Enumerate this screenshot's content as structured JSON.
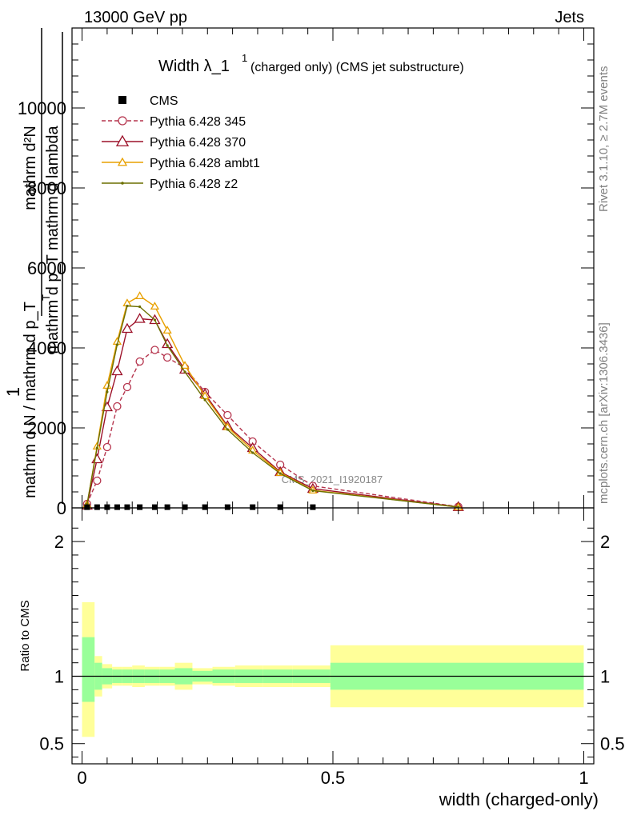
{
  "header": {
    "left": "13000 GeV pp",
    "right": "Jets"
  },
  "side_labels": {
    "rivet": "Rivet 3.1.10, ≥ 2.7M events",
    "mcplots": "mcplots.cern.ch [arXiv:1306.3436]"
  },
  "chart_data": [
    {
      "type": "line",
      "panel": "main",
      "title_main": "Width λ_1",
      "title_sup": "1",
      "title_rest": "(charged only) (CMS jet substructure)",
      "ylabel_top_frac": "mathrm d²N",
      "ylabel_bottom_frac": "mathrm d p_T mathrm d lambda",
      "ylabel_one": "1",
      "ylabel_bottom": "mathrm d N / mathrm d p_T",
      "ylabel_sub": "T",
      "watermark": "CMS_2021_I1920187",
      "xlim": [
        -0.02,
        1.02
      ],
      "ylim": [
        0,
        12000
      ],
      "yticks": [
        {
          "value": 0,
          "label": "0"
        },
        {
          "value": 2000,
          "label": "2000"
        },
        {
          "value": 4000,
          "label": "4000"
        },
        {
          "value": 6000,
          "label": "6000"
        },
        {
          "value": 8000,
          "label": "8000"
        },
        {
          "value": 10000,
          "label": "10000"
        }
      ],
      "legend": [
        {
          "label": "CMS",
          "color": "#000000",
          "marker": "square",
          "dash": ""
        },
        {
          "label": "Pythia 6.428 345",
          "color": "#b5344d",
          "marker": "circle",
          "dash": "5,3"
        },
        {
          "label": "Pythia 6.428 370",
          "color": "#9c1028",
          "marker": "triangle",
          "dash": ""
        },
        {
          "label": "Pythia 6.428 ambt1",
          "color": "#e8a000",
          "marker": "triangle",
          "dash": ""
        },
        {
          "label": "Pythia 6.428 z2",
          "color": "#6b6f00",
          "marker": "dot",
          "dash": ""
        }
      ],
      "cms": {
        "x": [
          0.01,
          0.03,
          0.05,
          0.07,
          0.09,
          0.115,
          0.145,
          0.17,
          0.205,
          0.245,
          0.29,
          0.34,
          0.395,
          0.46
        ],
        "y": [
          18,
          18,
          18,
          18,
          18,
          18,
          18,
          18,
          18,
          18,
          18,
          18,
          18,
          18
        ]
      },
      "series": [
        {
          "name": "Pythia 6.428 345",
          "x": [
            0.01,
            0.03,
            0.05,
            0.07,
            0.09,
            0.115,
            0.145,
            0.17,
            0.205,
            0.245,
            0.29,
            0.34,
            0.395,
            0.46,
            0.75
          ],
          "y": [
            100,
            680,
            1520,
            2540,
            3020,
            3660,
            3950,
            3760,
            3500,
            2900,
            2320,
            1660,
            1080,
            550,
            30
          ]
        },
        {
          "name": "Pythia 6.428 370",
          "x": [
            0.01,
            0.03,
            0.05,
            0.07,
            0.09,
            0.115,
            0.145,
            0.17,
            0.205,
            0.245,
            0.29,
            0.34,
            0.395,
            0.46,
            0.75
          ],
          "y": [
            60,
            1220,
            2520,
            3420,
            4480,
            4730,
            4700,
            4100,
            3460,
            2850,
            2050,
            1500,
            900,
            480,
            25
          ]
        },
        {
          "name": "Pythia 6.428 ambt1",
          "x": [
            0.01,
            0.03,
            0.05,
            0.07,
            0.09,
            0.115,
            0.145,
            0.17,
            0.205,
            0.245,
            0.29,
            0.34,
            0.395,
            0.46,
            0.75
          ],
          "y": [
            80,
            1540,
            3060,
            4160,
            5120,
            5300,
            5040,
            4440,
            3560,
            2800,
            2020,
            1440,
            880,
            440,
            20
          ]
        },
        {
          "name": "Pythia 6.428 z2",
          "x": [
            0.01,
            0.03,
            0.05,
            0.07,
            0.09,
            0.115,
            0.145,
            0.17,
            0.205,
            0.245,
            0.29,
            0.34,
            0.395,
            0.46,
            0.75
          ],
          "y": [
            90,
            1500,
            2900,
            4080,
            5050,
            5030,
            4700,
            4060,
            3400,
            2700,
            1960,
            1380,
            860,
            430,
            20
          ]
        }
      ]
    },
    {
      "type": "area",
      "panel": "ratio",
      "ylabel": "Ratio to CMS",
      "xlabel": "width (charged-only)",
      "xlim": [
        -0.02,
        1.02
      ],
      "ylim": [
        0.35,
        2.25
      ],
      "xticks": [
        {
          "value": 0,
          "label": "0"
        },
        {
          "value": 0.5,
          "label": "0.5"
        },
        {
          "value": 1,
          "label": "1"
        }
      ],
      "yticks": [
        {
          "value": 0.5,
          "label": "0.5"
        },
        {
          "value": 1,
          "label": "1"
        },
        {
          "value": 2,
          "label": "2"
        }
      ],
      "band_colors": {
        "outer": "#ffff99",
        "inner": "#99ff99"
      },
      "bins": [
        {
          "x0": 0.0,
          "x1": 0.025,
          "outer": [
            0.55,
            1.55
          ],
          "inner": [
            0.81,
            1.29
          ]
        },
        {
          "x0": 0.025,
          "x1": 0.04,
          "outer": [
            0.85,
            1.15
          ],
          "inner": [
            0.9,
            1.1
          ]
        },
        {
          "x0": 0.04,
          "x1": 0.06,
          "outer": [
            0.91,
            1.09
          ],
          "inner": [
            0.94,
            1.06
          ]
        },
        {
          "x0": 0.06,
          "x1": 0.08,
          "outer": [
            0.93,
            1.07
          ],
          "inner": [
            0.95,
            1.05
          ]
        },
        {
          "x0": 0.08,
          "x1": 0.1,
          "outer": [
            0.93,
            1.07
          ],
          "inner": [
            0.95,
            1.05
          ]
        },
        {
          "x0": 0.1,
          "x1": 0.125,
          "outer": [
            0.92,
            1.08
          ],
          "inner": [
            0.95,
            1.05
          ]
        },
        {
          "x0": 0.125,
          "x1": 0.155,
          "outer": [
            0.93,
            1.07
          ],
          "inner": [
            0.95,
            1.05
          ]
        },
        {
          "x0": 0.155,
          "x1": 0.185,
          "outer": [
            0.93,
            1.07
          ],
          "inner": [
            0.95,
            1.05
          ]
        },
        {
          "x0": 0.185,
          "x1": 0.22,
          "outer": [
            0.9,
            1.1
          ],
          "inner": [
            0.94,
            1.06
          ]
        },
        {
          "x0": 0.22,
          "x1": 0.26,
          "outer": [
            0.94,
            1.06
          ],
          "inner": [
            0.96,
            1.04
          ]
        },
        {
          "x0": 0.26,
          "x1": 0.305,
          "outer": [
            0.93,
            1.07
          ],
          "inner": [
            0.95,
            1.05
          ]
        },
        {
          "x0": 0.305,
          "x1": 0.36,
          "outer": [
            0.92,
            1.08
          ],
          "inner": [
            0.95,
            1.05
          ]
        },
        {
          "x0": 0.36,
          "x1": 0.42,
          "outer": [
            0.92,
            1.08
          ],
          "inner": [
            0.95,
            1.05
          ]
        },
        {
          "x0": 0.42,
          "x1": 0.495,
          "outer": [
            0.92,
            1.08
          ],
          "inner": [
            0.95,
            1.05
          ]
        },
        {
          "x0": 0.495,
          "x1": 1.0,
          "outer": [
            0.77,
            1.23
          ],
          "inner": [
            0.9,
            1.1
          ]
        }
      ]
    }
  ]
}
